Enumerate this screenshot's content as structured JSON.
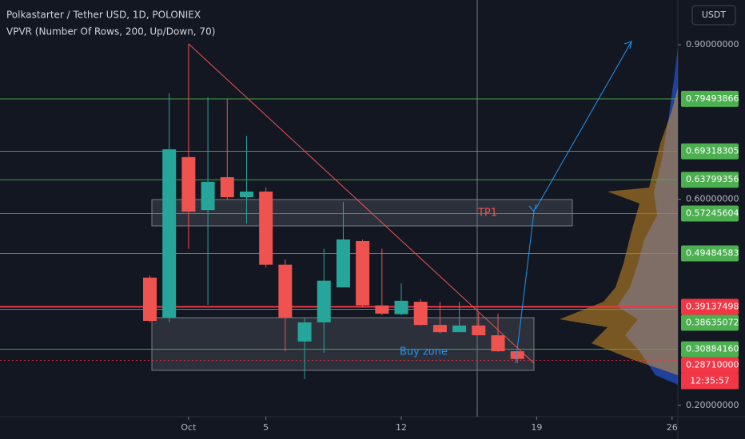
{
  "chart_data": {
    "type": "candlestick",
    "title": "Polkastarter / Tether USD, 1D, POLONIEX",
    "subtitle": "VPVR (Number Of Rows, 200, Up/Down, 70)",
    "currency": "USDT",
    "countdown": "12:35:57",
    "annotations": {
      "tp": "TP1",
      "buy": "Buy zone"
    },
    "x": [
      -1,
      0,
      1,
      2,
      3,
      4,
      5,
      6,
      7,
      8,
      9,
      10,
      11,
      12,
      13,
      14,
      15,
      16,
      17,
      18
    ],
    "open": [
      0.448,
      0.37,
      0.682,
      0.579,
      0.643,
      0.604,
      0.615,
      0.473,
      0.324,
      0.361,
      0.429,
      0.519,
      0.394,
      0.377,
      0.401,
      0.356,
      0.342,
      0.355,
      0.336,
      0.305
    ],
    "high": [
      0.452,
      0.806,
      0.902,
      0.798,
      0.795,
      0.723,
      0.623,
      0.483,
      0.37,
      0.504,
      0.595,
      0.522,
      0.504,
      0.437,
      0.406,
      0.401,
      0.401,
      0.38,
      0.378,
      0.305
    ],
    "low": [
      0.361,
      0.361,
      0.504,
      0.395,
      0.6,
      0.553,
      0.468,
      0.305,
      0.251,
      0.302,
      0.429,
      0.39,
      0.375,
      0.375,
      0.355,
      0.339,
      0.342,
      0.336,
      0.304,
      0.282
    ],
    "close": [
      0.364,
      0.697,
      0.576,
      0.634,
      0.604,
      0.615,
      0.473,
      0.37,
      0.361,
      0.442,
      0.522,
      0.394,
      0.378,
      0.403,
      0.356,
      0.342,
      0.355,
      0.336,
      0.305,
      0.29
    ],
    "up_color": "#26a69a",
    "down_color": "#ef5350",
    "xlim": [
      -8.75,
      26.3
    ],
    "xticks": [
      {
        "value": 1,
        "label": "Oct"
      },
      5,
      12,
      19,
      26
    ],
    "ylim": [
      0.178,
      0.987
    ],
    "yticks": [
      {
        "value": 0.9,
        "label": "0.90000000"
      },
      {
        "value": 0.6,
        "label": "0.60000000"
      },
      {
        "value": 0.2,
        "label": "0.20000000"
      }
    ],
    "grid": false,
    "levels": [
      {
        "value": 0.79493866,
        "color": "#4caf50"
      },
      {
        "value": 0.69318305,
        "color": "#4caf50"
      },
      {
        "value": 0.63799356,
        "color": "#4caf50"
      },
      {
        "value": 0.57245604,
        "color": "#4caf50"
      },
      {
        "value": 0.49484583,
        "color": "#4caf50"
      },
      {
        "value": 0.39137498,
        "color": "#f23645"
      },
      {
        "value": 0.38635072,
        "color": "#4caf50"
      },
      {
        "value": 0.3088416,
        "label": "0.30884160",
        "color": "#4caf50"
      },
      {
        "value": 0.2871,
        "label": "0.28710000",
        "color": "#f23645"
      }
    ]
  }
}
